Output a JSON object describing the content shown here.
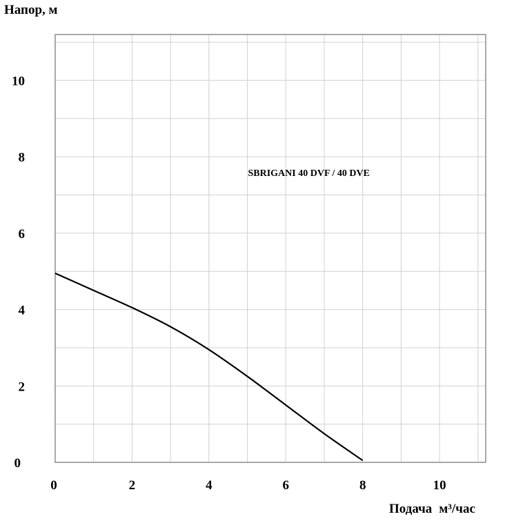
{
  "chart_data": {
    "type": "line",
    "ylabel": "Напор, м",
    "xlabel": "Подача",
    "xunit": "м³/час",
    "annotation": "SBRIGANI 40 DVF / 40 DVE",
    "xlim": [
      0,
      11.2
    ],
    "ylim": [
      0,
      11.2
    ],
    "x_ticks": [
      0,
      2,
      4,
      6,
      8,
      10
    ],
    "y_ticks": [
      0,
      2,
      4,
      6,
      8,
      10
    ],
    "grid": true,
    "grid_step": 1,
    "annotation_at": [
      6.6,
      7.5
    ],
    "series": [
      {
        "x": [
          0,
          1,
          2,
          3,
          4,
          5,
          6,
          7,
          8
        ],
        "y": [
          4.95,
          4.5,
          4.05,
          3.55,
          2.95,
          2.25,
          1.5,
          0.75,
          0.05
        ],
        "color": "#000000"
      }
    ]
  }
}
